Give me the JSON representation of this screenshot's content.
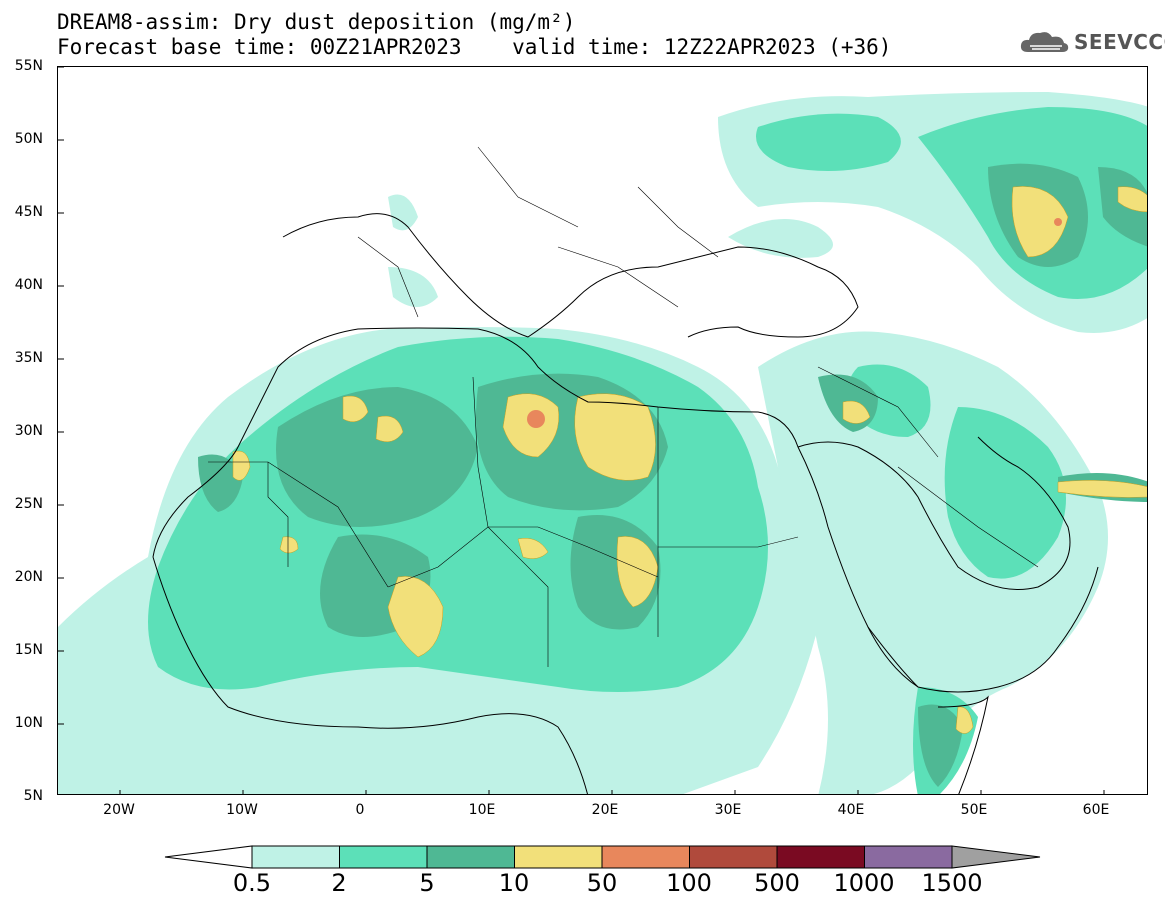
{
  "title": {
    "line1": "DREAM8-assim: Dry dust deposition (mg/m²)",
    "line2": "Forecast base time: 00Z21APR2023    valid time: 12Z22APR2023 (+36)"
  },
  "brand": {
    "name": "SEEVCCC",
    "icon": "cloud-logo-icon"
  },
  "axes": {
    "lat_ticks": [
      "55N",
      "50N",
      "45N",
      "40N",
      "35N",
      "30N",
      "25N",
      "20N",
      "15N",
      "10N",
      "5N"
    ],
    "lon_ticks": [
      "20W",
      "10W",
      "0",
      "10E",
      "20E",
      "30E",
      "40E",
      "50E",
      "60E"
    ]
  },
  "legend": {
    "levels": [
      "0.5",
      "2",
      "5",
      "10",
      "50",
      "100",
      "500",
      "1000",
      "1500"
    ],
    "colors": [
      "#bff2e6",
      "#5ce0b8",
      "#4fb894",
      "#f2e07a",
      "#e8875c",
      "#b04a3c",
      "#7a0a22",
      "#8a6aa0",
      "#a0a0a0"
    ],
    "under_color": "#ffffff"
  }
}
